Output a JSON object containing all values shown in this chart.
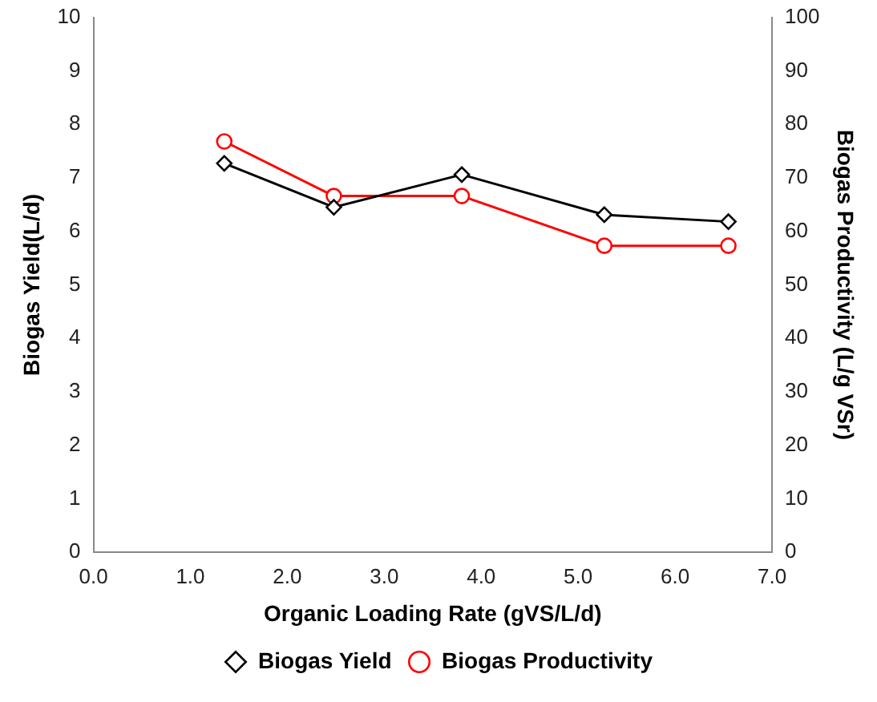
{
  "chart_data": {
    "type": "line",
    "xlabel": "Organic Loading Rate (gVS/L/d)",
    "ylabel": "Biogas Yield(L/d)",
    "y2label": "Biogas Productivity (L/g VSr)",
    "x": [
      1.35,
      2.48,
      3.8,
      5.27,
      6.55
    ],
    "series": [
      {
        "name": "Biogas Yield",
        "color": "#000000",
        "marker": "diamond",
        "values": [
          7.27,
          6.45,
          7.06,
          6.31,
          6.18
        ]
      },
      {
        "name": "Biogas Productivity",
        "color": "#ff0000",
        "marker": "circle",
        "axis": "y2",
        "values": [
          76.8,
          66.6,
          66.6,
          57.3,
          57.3
        ]
      }
    ],
    "xlim": [
      0,
      7
    ],
    "xticks": [
      {
        "value": 0,
        "label": "0.0"
      },
      {
        "value": 1,
        "label": "1.0"
      },
      {
        "value": 2,
        "label": "2.0"
      },
      {
        "value": 3,
        "label": "3.0"
      },
      {
        "value": 4,
        "label": "4.0"
      },
      {
        "value": 5,
        "label": "5.0"
      },
      {
        "value": 6,
        "label": "6.0"
      },
      {
        "value": 7,
        "label": "7.0"
      }
    ],
    "ylim": [
      0,
      10
    ],
    "yticks": [
      0,
      1,
      2,
      3,
      4,
      5,
      6,
      7,
      8,
      9,
      10
    ],
    "y2lim": [
      0,
      100
    ],
    "y2ticks": [
      0,
      10,
      20,
      30,
      40,
      50,
      60,
      70,
      80,
      90,
      100
    ],
    "grid": false,
    "legend": "bottom"
  }
}
